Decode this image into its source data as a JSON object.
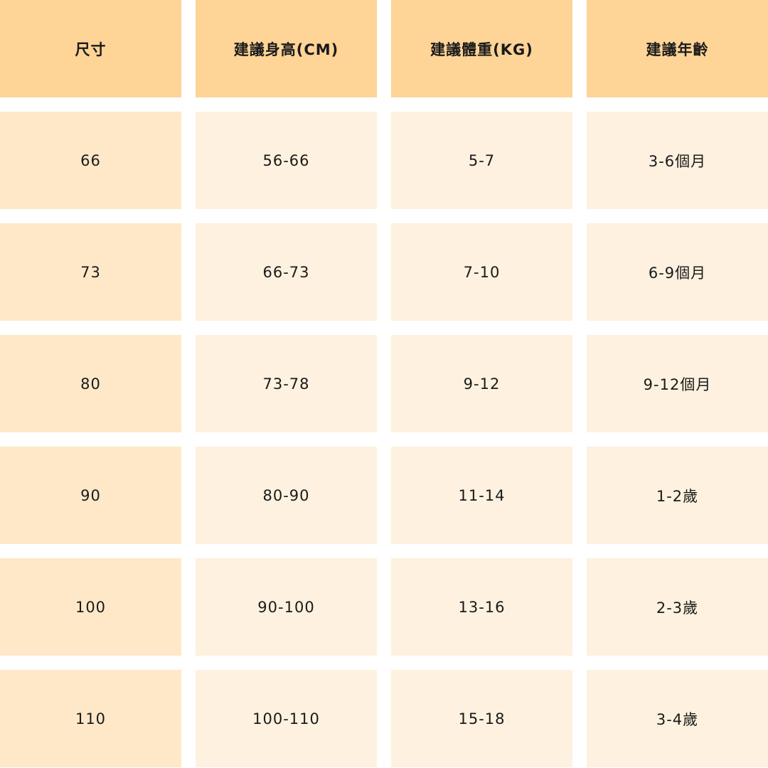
{
  "colors": {
    "header": "#FED497",
    "first_column": "#FEE8C8",
    "cells": "#FEF1DF"
  },
  "headers": [
    "尺寸",
    "建議身高(CM)",
    "建議體重(KG)",
    "建議年齡"
  ],
  "rows": [
    [
      "66",
      "56-66",
      "5-7",
      "3-6個月"
    ],
    [
      "73",
      "66-73",
      "7-10",
      "6-9個月"
    ],
    [
      "80",
      "73-78",
      "9-12",
      "9-12個月"
    ],
    [
      "90",
      "80-90",
      "11-14",
      "1-2歲"
    ],
    [
      "100",
      "90-100",
      "13-16",
      "2-3歲"
    ],
    [
      "110",
      "100-110",
      "15-18",
      "3-4歲"
    ]
  ]
}
